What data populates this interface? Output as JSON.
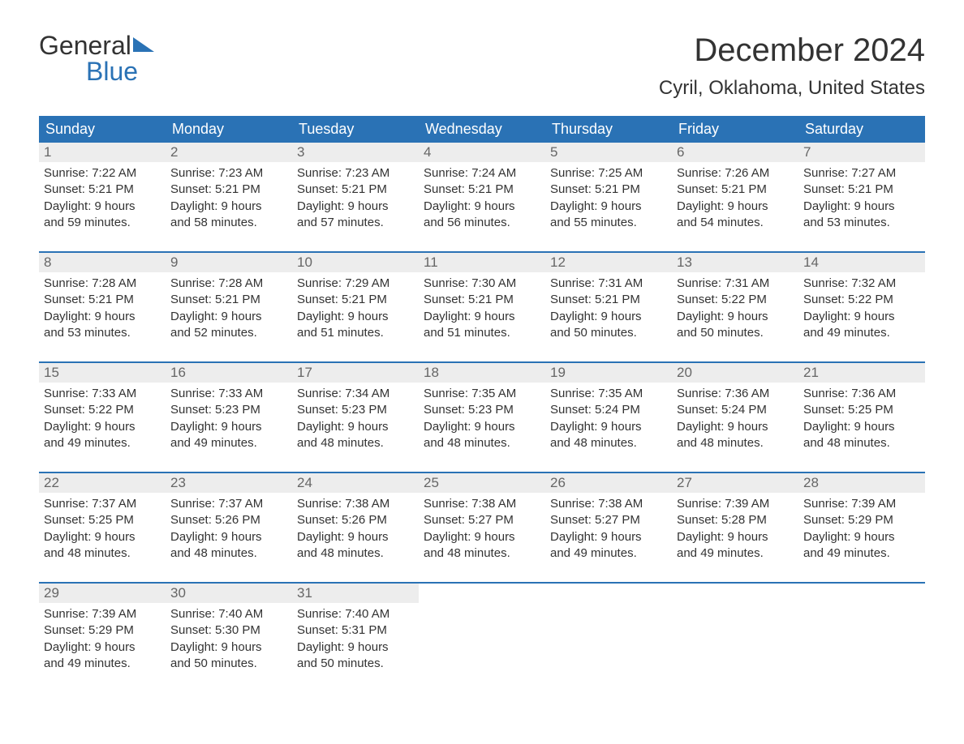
{
  "logo": {
    "word1": "General",
    "word2": "Blue"
  },
  "title": "December 2024",
  "location": "Cyril, Oklahoma, United States",
  "columns": [
    "Sunday",
    "Monday",
    "Tuesday",
    "Wednesday",
    "Thursday",
    "Friday",
    "Saturday"
  ],
  "colors": {
    "header_bg": "#2a72b5",
    "header_text": "#ffffff",
    "day_num_bg": "#ededed",
    "day_num_text": "#666666",
    "body_bg": "#ffffff",
    "body_text": "#333333",
    "week_rule": "#2a72b5",
    "logo_accent": "#2a72b5"
  },
  "weeks": [
    [
      {
        "n": "1",
        "sunrise": "Sunrise: 7:22 AM",
        "sunset": "Sunset: 5:21 PM",
        "d1": "Daylight: 9 hours",
        "d2": "and 59 minutes."
      },
      {
        "n": "2",
        "sunrise": "Sunrise: 7:23 AM",
        "sunset": "Sunset: 5:21 PM",
        "d1": "Daylight: 9 hours",
        "d2": "and 58 minutes."
      },
      {
        "n": "3",
        "sunrise": "Sunrise: 7:23 AM",
        "sunset": "Sunset: 5:21 PM",
        "d1": "Daylight: 9 hours",
        "d2": "and 57 minutes."
      },
      {
        "n": "4",
        "sunrise": "Sunrise: 7:24 AM",
        "sunset": "Sunset: 5:21 PM",
        "d1": "Daylight: 9 hours",
        "d2": "and 56 minutes."
      },
      {
        "n": "5",
        "sunrise": "Sunrise: 7:25 AM",
        "sunset": "Sunset: 5:21 PM",
        "d1": "Daylight: 9 hours",
        "d2": "and 55 minutes."
      },
      {
        "n": "6",
        "sunrise": "Sunrise: 7:26 AM",
        "sunset": "Sunset: 5:21 PM",
        "d1": "Daylight: 9 hours",
        "d2": "and 54 minutes."
      },
      {
        "n": "7",
        "sunrise": "Sunrise: 7:27 AM",
        "sunset": "Sunset: 5:21 PM",
        "d1": "Daylight: 9 hours",
        "d2": "and 53 minutes."
      }
    ],
    [
      {
        "n": "8",
        "sunrise": "Sunrise: 7:28 AM",
        "sunset": "Sunset: 5:21 PM",
        "d1": "Daylight: 9 hours",
        "d2": "and 53 minutes."
      },
      {
        "n": "9",
        "sunrise": "Sunrise: 7:28 AM",
        "sunset": "Sunset: 5:21 PM",
        "d1": "Daylight: 9 hours",
        "d2": "and 52 minutes."
      },
      {
        "n": "10",
        "sunrise": "Sunrise: 7:29 AM",
        "sunset": "Sunset: 5:21 PM",
        "d1": "Daylight: 9 hours",
        "d2": "and 51 minutes."
      },
      {
        "n": "11",
        "sunrise": "Sunrise: 7:30 AM",
        "sunset": "Sunset: 5:21 PM",
        "d1": "Daylight: 9 hours",
        "d2": "and 51 minutes."
      },
      {
        "n": "12",
        "sunrise": "Sunrise: 7:31 AM",
        "sunset": "Sunset: 5:21 PM",
        "d1": "Daylight: 9 hours",
        "d2": "and 50 minutes."
      },
      {
        "n": "13",
        "sunrise": "Sunrise: 7:31 AM",
        "sunset": "Sunset: 5:22 PM",
        "d1": "Daylight: 9 hours",
        "d2": "and 50 minutes."
      },
      {
        "n": "14",
        "sunrise": "Sunrise: 7:32 AM",
        "sunset": "Sunset: 5:22 PM",
        "d1": "Daylight: 9 hours",
        "d2": "and 49 minutes."
      }
    ],
    [
      {
        "n": "15",
        "sunrise": "Sunrise: 7:33 AM",
        "sunset": "Sunset: 5:22 PM",
        "d1": "Daylight: 9 hours",
        "d2": "and 49 minutes."
      },
      {
        "n": "16",
        "sunrise": "Sunrise: 7:33 AM",
        "sunset": "Sunset: 5:23 PM",
        "d1": "Daylight: 9 hours",
        "d2": "and 49 minutes."
      },
      {
        "n": "17",
        "sunrise": "Sunrise: 7:34 AM",
        "sunset": "Sunset: 5:23 PM",
        "d1": "Daylight: 9 hours",
        "d2": "and 48 minutes."
      },
      {
        "n": "18",
        "sunrise": "Sunrise: 7:35 AM",
        "sunset": "Sunset: 5:23 PM",
        "d1": "Daylight: 9 hours",
        "d2": "and 48 minutes."
      },
      {
        "n": "19",
        "sunrise": "Sunrise: 7:35 AM",
        "sunset": "Sunset: 5:24 PM",
        "d1": "Daylight: 9 hours",
        "d2": "and 48 minutes."
      },
      {
        "n": "20",
        "sunrise": "Sunrise: 7:36 AM",
        "sunset": "Sunset: 5:24 PM",
        "d1": "Daylight: 9 hours",
        "d2": "and 48 minutes."
      },
      {
        "n": "21",
        "sunrise": "Sunrise: 7:36 AM",
        "sunset": "Sunset: 5:25 PM",
        "d1": "Daylight: 9 hours",
        "d2": "and 48 minutes."
      }
    ],
    [
      {
        "n": "22",
        "sunrise": "Sunrise: 7:37 AM",
        "sunset": "Sunset: 5:25 PM",
        "d1": "Daylight: 9 hours",
        "d2": "and 48 minutes."
      },
      {
        "n": "23",
        "sunrise": "Sunrise: 7:37 AM",
        "sunset": "Sunset: 5:26 PM",
        "d1": "Daylight: 9 hours",
        "d2": "and 48 minutes."
      },
      {
        "n": "24",
        "sunrise": "Sunrise: 7:38 AM",
        "sunset": "Sunset: 5:26 PM",
        "d1": "Daylight: 9 hours",
        "d2": "and 48 minutes."
      },
      {
        "n": "25",
        "sunrise": "Sunrise: 7:38 AM",
        "sunset": "Sunset: 5:27 PM",
        "d1": "Daylight: 9 hours",
        "d2": "and 48 minutes."
      },
      {
        "n": "26",
        "sunrise": "Sunrise: 7:38 AM",
        "sunset": "Sunset: 5:27 PM",
        "d1": "Daylight: 9 hours",
        "d2": "and 49 minutes."
      },
      {
        "n": "27",
        "sunrise": "Sunrise: 7:39 AM",
        "sunset": "Sunset: 5:28 PM",
        "d1": "Daylight: 9 hours",
        "d2": "and 49 minutes."
      },
      {
        "n": "28",
        "sunrise": "Sunrise: 7:39 AM",
        "sunset": "Sunset: 5:29 PM",
        "d1": "Daylight: 9 hours",
        "d2": "and 49 minutes."
      }
    ],
    [
      {
        "n": "29",
        "sunrise": "Sunrise: 7:39 AM",
        "sunset": "Sunset: 5:29 PM",
        "d1": "Daylight: 9 hours",
        "d2": "and 49 minutes."
      },
      {
        "n": "30",
        "sunrise": "Sunrise: 7:40 AM",
        "sunset": "Sunset: 5:30 PM",
        "d1": "Daylight: 9 hours",
        "d2": "and 50 minutes."
      },
      {
        "n": "31",
        "sunrise": "Sunrise: 7:40 AM",
        "sunset": "Sunset: 5:31 PM",
        "d1": "Daylight: 9 hours",
        "d2": "and 50 minutes."
      },
      {
        "empty": true
      },
      {
        "empty": true
      },
      {
        "empty": true
      },
      {
        "empty": true
      }
    ]
  ]
}
